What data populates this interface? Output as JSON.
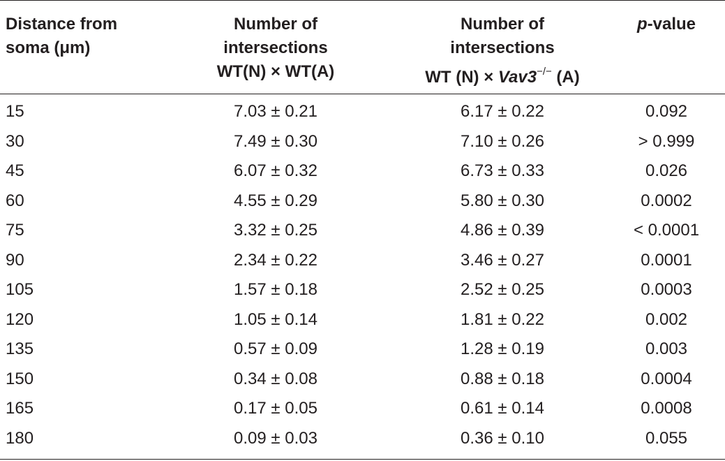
{
  "headers": {
    "distance": [
      "Distance from",
      "soma (μm)"
    ],
    "wt_wt": [
      "Number of",
      "intersections",
      "WT(N) × WT(A)"
    ],
    "wt_vav3": {
      "line1": "Number of",
      "line2": "intersections",
      "line3_prefix": "WT (N) × ",
      "line3_gene": "Vav3",
      "line3_sup": "−/−",
      "line3_suffix": " (A)"
    },
    "pvalue": {
      "p": "p",
      "rest": "-value"
    }
  },
  "rows": [
    {
      "distance": "15",
      "wt_wt": "7.03 ± 0.21",
      "wt_vav3": "6.17 ± 0.22",
      "p": "0.092"
    },
    {
      "distance": "30",
      "wt_wt": "7.49 ± 0.30",
      "wt_vav3": "7.10 ± 0.26",
      "p": ">  0.999"
    },
    {
      "distance": "45",
      "wt_wt": "6.07 ± 0.32",
      "wt_vav3": "6.73 ± 0.33",
      "p": "0.026"
    },
    {
      "distance": "60",
      "wt_wt": "4.55 ± 0.29",
      "wt_vav3": "5.80 ± 0.30",
      "p": "0.0002"
    },
    {
      "distance": "75",
      "wt_wt": "3.32 ± 0.25",
      "wt_vav3": "4.86 ± 0.39",
      "p": "<  0.0001"
    },
    {
      "distance": "90",
      "wt_wt": "2.34 ± 0.22",
      "wt_vav3": "3.46 ± 0.27",
      "p": "0.0001"
    },
    {
      "distance": "105",
      "wt_wt": "1.57 ± 0.18",
      "wt_vav3": "2.52 ± 0.25",
      "p": "0.0003"
    },
    {
      "distance": "120",
      "wt_wt": "1.05 ± 0.14",
      "wt_vav3": "1.81 ± 0.22",
      "p": "0.002"
    },
    {
      "distance": "135",
      "wt_wt": "0.57 ± 0.09",
      "wt_vav3": "1.28 ± 0.19",
      "p": "0.003"
    },
    {
      "distance": "150",
      "wt_wt": "0.34 ± 0.08",
      "wt_vav3": "0.88 ± 0.18",
      "p": "0.0004"
    },
    {
      "distance": "165",
      "wt_wt": "0.17 ± 0.05",
      "wt_vav3": "0.61 ± 0.14",
      "p": "0.0008"
    },
    {
      "distance": "180",
      "wt_wt": "0.09 ± 0.03",
      "wt_vav3": "0.36 ± 0.10",
      "p": "0.055"
    }
  ]
}
